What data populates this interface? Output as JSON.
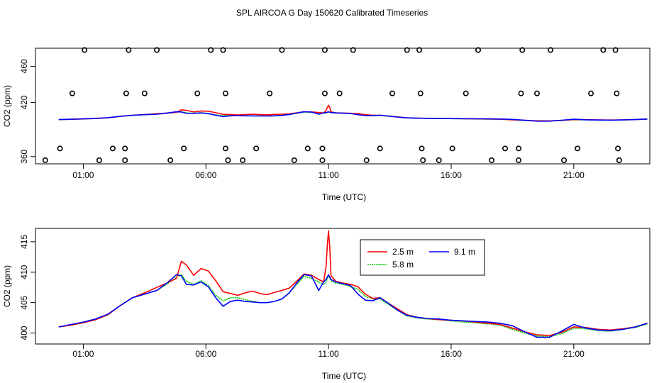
{
  "title": "SPL AIRCOA G  Day 150620  Calibrated Timeseries",
  "chart_data": [
    {
      "type": "line",
      "panel": "top",
      "xlabel": "Time (UTC)",
      "ylabel": "CO2 (ppm)",
      "xlim": [
        -0.95,
        24.1
      ],
      "ylim": [
        352,
        480
      ],
      "x_ticks": [
        1,
        6,
        11,
        16,
        21
      ],
      "x_tick_labels": [
        "01:00",
        "06:00",
        "11:00",
        "16:00",
        "21:00"
      ],
      "y_ticks": [
        360,
        420,
        460
      ],
      "y_tick_labels": [
        "360",
        "420",
        "460"
      ],
      "colors": {
        "red": "#ff0000",
        "green": "#00cc00",
        "blue": "#0000ff",
        "frame": "#000000"
      },
      "series": [
        {
          "name": "2.5 m",
          "color": "#ff0000",
          "x": [
            0,
            0.5,
            1,
            1.5,
            2,
            2.5,
            3,
            3.5,
            4,
            4.4,
            4.8,
            5.0,
            5.2,
            5.5,
            5.8,
            6.1,
            6.4,
            6.7,
            7.0,
            7.3,
            7.6,
            7.9,
            8.2,
            8.5,
            8.8,
            9.1,
            9.4,
            9.7,
            10.0,
            10.3,
            10.6,
            10.8,
            10.9,
            10.95,
            11.0,
            11.05,
            11.1,
            11.3,
            11.6,
            11.9,
            12.2,
            12.5,
            12.8,
            13.1,
            13.4,
            13.8,
            14.2,
            14.6,
            15.0,
            15.5,
            16.0,
            16.5,
            17.0,
            17.5,
            18.0,
            18.5,
            19.0,
            19.5,
            20.0,
            20.5,
            21.0,
            21.5,
            22.0,
            22.5,
            23.0,
            23.5,
            24.0
          ],
          "values": [
            401.0,
            401.3,
            401.7,
            402.2,
            403.0,
            404.5,
            405.8,
            406.6,
            407.5,
            408.2,
            409.0,
            411.8,
            411.2,
            409.5,
            410.6,
            410.2,
            408.6,
            406.8,
            406.5,
            406.2,
            406.6,
            406.9,
            406.5,
            406.3,
            406.7,
            407.0,
            407.4,
            408.5,
            409.7,
            409.5,
            408.8,
            408.4,
            411.0,
            414.5,
            416.8,
            414.0,
            409.4,
            408.5,
            408.2,
            408.0,
            407.6,
            406.4,
            405.7,
            405.8,
            405.0,
            404.0,
            403.0,
            402.6,
            402.4,
            402.2,
            402.1,
            402.0,
            401.8,
            401.6,
            401.4,
            400.8,
            400.2,
            399.7,
            399.6,
            400.1,
            401.0,
            400.9,
            400.6,
            400.5,
            400.7,
            401.0,
            401.6
          ]
        },
        {
          "name": "5.8 m",
          "color": "#00cc00",
          "x": [
            0,
            0.5,
            1,
            1.5,
            2,
            2.5,
            3,
            3.5,
            4,
            4.4,
            4.8,
            5.0,
            5.2,
            5.5,
            5.8,
            6.1,
            6.4,
            6.7,
            7.0,
            7.3,
            7.6,
            7.9,
            8.2,
            8.5,
            8.8,
            9.1,
            9.4,
            9.7,
            10.0,
            10.3,
            10.6,
            10.8,
            10.9,
            10.95,
            11.0,
            11.05,
            11.1,
            11.3,
            11.6,
            11.9,
            12.2,
            12.5,
            12.8,
            13.1,
            13.4,
            13.8,
            14.2,
            14.6,
            15.0,
            15.5,
            16.0,
            16.5,
            17.0,
            17.5,
            18.0,
            18.5,
            19.0,
            19.5,
            20.0,
            20.5,
            21.0,
            21.5,
            22.0,
            22.5,
            23.0,
            23.5,
            24.0
          ],
          "values": [
            401.0,
            401.3,
            401.7,
            402.2,
            403.0,
            404.5,
            405.8,
            406.4,
            407.0,
            408.0,
            409.2,
            409.6,
            408.5,
            408.0,
            408.6,
            407.8,
            406.2,
            405.3,
            405.8,
            405.8,
            405.5,
            405.2,
            405.0,
            405.0,
            405.2,
            405.6,
            406.6,
            408.0,
            409.3,
            409.0,
            408.4,
            408.0,
            408.3,
            409.0,
            409.4,
            409.0,
            408.6,
            408.2,
            408.0,
            407.6,
            407.2,
            406.0,
            405.6,
            405.6,
            404.8,
            403.8,
            402.8,
            402.5,
            402.3,
            402.2,
            402.0,
            401.8,
            401.7,
            401.5,
            401.3,
            400.6,
            400.0,
            399.5,
            399.4,
            399.9,
            400.8,
            400.7,
            400.4,
            400.3,
            400.6,
            400.9,
            401.5
          ]
        },
        {
          "name": "9.1 m",
          "color": "#0000ff",
          "x": [
            0,
            0.5,
            1,
            1.5,
            2,
            2.5,
            3,
            3.5,
            4,
            4.4,
            4.8,
            5.0,
            5.2,
            5.5,
            5.8,
            6.1,
            6.4,
            6.7,
            7.0,
            7.3,
            7.6,
            7.9,
            8.2,
            8.5,
            8.8,
            9.1,
            9.4,
            9.7,
            10.0,
            10.3,
            10.6,
            10.8,
            10.9,
            10.95,
            11.0,
            11.05,
            11.1,
            11.3,
            11.6,
            11.9,
            12.2,
            12.5,
            12.8,
            13.1,
            13.4,
            13.8,
            14.2,
            14.6,
            15.0,
            15.5,
            16.0,
            16.5,
            17.0,
            17.5,
            18.0,
            18.5,
            19.0,
            19.5,
            20.0,
            20.5,
            21.0,
            21.5,
            22.0,
            22.5,
            23.0,
            23.5,
            24.0
          ],
          "values": [
            401.0,
            401.4,
            401.8,
            402.3,
            403.1,
            404.5,
            405.8,
            406.4,
            407.0,
            408.2,
            409.6,
            409.4,
            408.0,
            407.9,
            408.4,
            407.6,
            405.8,
            404.4,
            405.2,
            405.4,
            405.2,
            405.1,
            405.0,
            405.0,
            405.2,
            405.6,
            406.6,
            408.2,
            409.6,
            409.4,
            407.0,
            408.4,
            408.8,
            409.2,
            409.6,
            409.2,
            408.8,
            408.4,
            408.1,
            407.8,
            406.4,
            405.4,
            405.3,
            405.8,
            405.0,
            403.8,
            402.9,
            402.6,
            402.4,
            402.3,
            402.1,
            402.0,
            401.9,
            401.8,
            401.6,
            401.2,
            400.2,
            399.3,
            399.3,
            400.3,
            401.4,
            400.8,
            400.5,
            400.4,
            400.6,
            401.0,
            401.6
          ]
        }
      ],
      "flag_markers": [
        {
          "x": -0.55,
          "y": 356
        },
        {
          "x": 0.05,
          "y": 369
        },
        {
          "x": 0.55,
          "y": 430
        },
        {
          "x": 1.05,
          "y": 478
        },
        {
          "x": 1.65,
          "y": 356
        },
        {
          "x": 2.2,
          "y": 369
        },
        {
          "x": 2.7,
          "y": 369
        },
        {
          "x": 2.75,
          "y": 430
        },
        {
          "x": 2.85,
          "y": 478
        },
        {
          "x": 2.7,
          "y": 356
        },
        {
          "x": 3.5,
          "y": 430
        },
        {
          "x": 4.0,
          "y": 478
        },
        {
          "x": 4.55,
          "y": 356
        },
        {
          "x": 5.1,
          "y": 369
        },
        {
          "x": 5.65,
          "y": 430
        },
        {
          "x": 6.2,
          "y": 478
        },
        {
          "x": 6.7,
          "y": 478
        },
        {
          "x": 6.8,
          "y": 430
        },
        {
          "x": 6.8,
          "y": 369
        },
        {
          "x": 6.9,
          "y": 356
        },
        {
          "x": 7.5,
          "y": 356
        },
        {
          "x": 8.05,
          "y": 369
        },
        {
          "x": 8.6,
          "y": 430
        },
        {
          "x": 9.1,
          "y": 478
        },
        {
          "x": 9.6,
          "y": 356
        },
        {
          "x": 10.15,
          "y": 369
        },
        {
          "x": 10.75,
          "y": 369
        },
        {
          "x": 10.75,
          "y": 356
        },
        {
          "x": 10.85,
          "y": 430
        },
        {
          "x": 10.85,
          "y": 478
        },
        {
          "x": 11.45,
          "y": 430
        },
        {
          "x": 12.0,
          "y": 478
        },
        {
          "x": 12.55,
          "y": 356
        },
        {
          "x": 13.1,
          "y": 369
        },
        {
          "x": 13.6,
          "y": 430
        },
        {
          "x": 14.2,
          "y": 478
        },
        {
          "x": 14.7,
          "y": 478
        },
        {
          "x": 14.75,
          "y": 430
        },
        {
          "x": 14.8,
          "y": 369
        },
        {
          "x": 14.85,
          "y": 356
        },
        {
          "x": 15.5,
          "y": 356
        },
        {
          "x": 16.05,
          "y": 369
        },
        {
          "x": 16.6,
          "y": 430
        },
        {
          "x": 17.1,
          "y": 478
        },
        {
          "x": 17.65,
          "y": 356
        },
        {
          "x": 18.2,
          "y": 369
        },
        {
          "x": 18.75,
          "y": 369
        },
        {
          "x": 18.75,
          "y": 356
        },
        {
          "x": 18.85,
          "y": 430
        },
        {
          "x": 18.9,
          "y": 478
        },
        {
          "x": 19.5,
          "y": 430
        },
        {
          "x": 20.05,
          "y": 478
        },
        {
          "x": 20.6,
          "y": 356
        },
        {
          "x": 21.15,
          "y": 369
        },
        {
          "x": 21.7,
          "y": 430
        },
        {
          "x": 22.2,
          "y": 478
        },
        {
          "x": 22.7,
          "y": 478
        },
        {
          "x": 22.75,
          "y": 430
        },
        {
          "x": 22.8,
          "y": 369
        },
        {
          "x": 22.85,
          "y": 356
        }
      ]
    },
    {
      "type": "line",
      "panel": "bottom",
      "xlabel": "Time (UTC)",
      "ylabel": "CO2 (ppm)",
      "xlim": [
        -0.95,
        24.1
      ],
      "ylim": [
        398.2,
        417.2
      ],
      "x_ticks": [
        1,
        6,
        11,
        16,
        21
      ],
      "x_tick_labels": [
        "01:00",
        "06:00",
        "11:00",
        "16:00",
        "21:00"
      ],
      "y_ticks": [
        400,
        405,
        410,
        415
      ],
      "y_tick_labels": [
        "400",
        "405",
        "410",
        "415"
      ],
      "legend": {
        "position": "top-center",
        "entries": [
          {
            "label": "2.5 m",
            "color": "#ff0000",
            "dash": "solid"
          },
          {
            "label": "5.8 m",
            "color": "#00cc00",
            "dash": "dotted"
          },
          {
            "label": "9.1 m",
            "color": "#0000ff",
            "dash": "solid"
          }
        ]
      },
      "series_ref": "same as top panel series"
    }
  ]
}
